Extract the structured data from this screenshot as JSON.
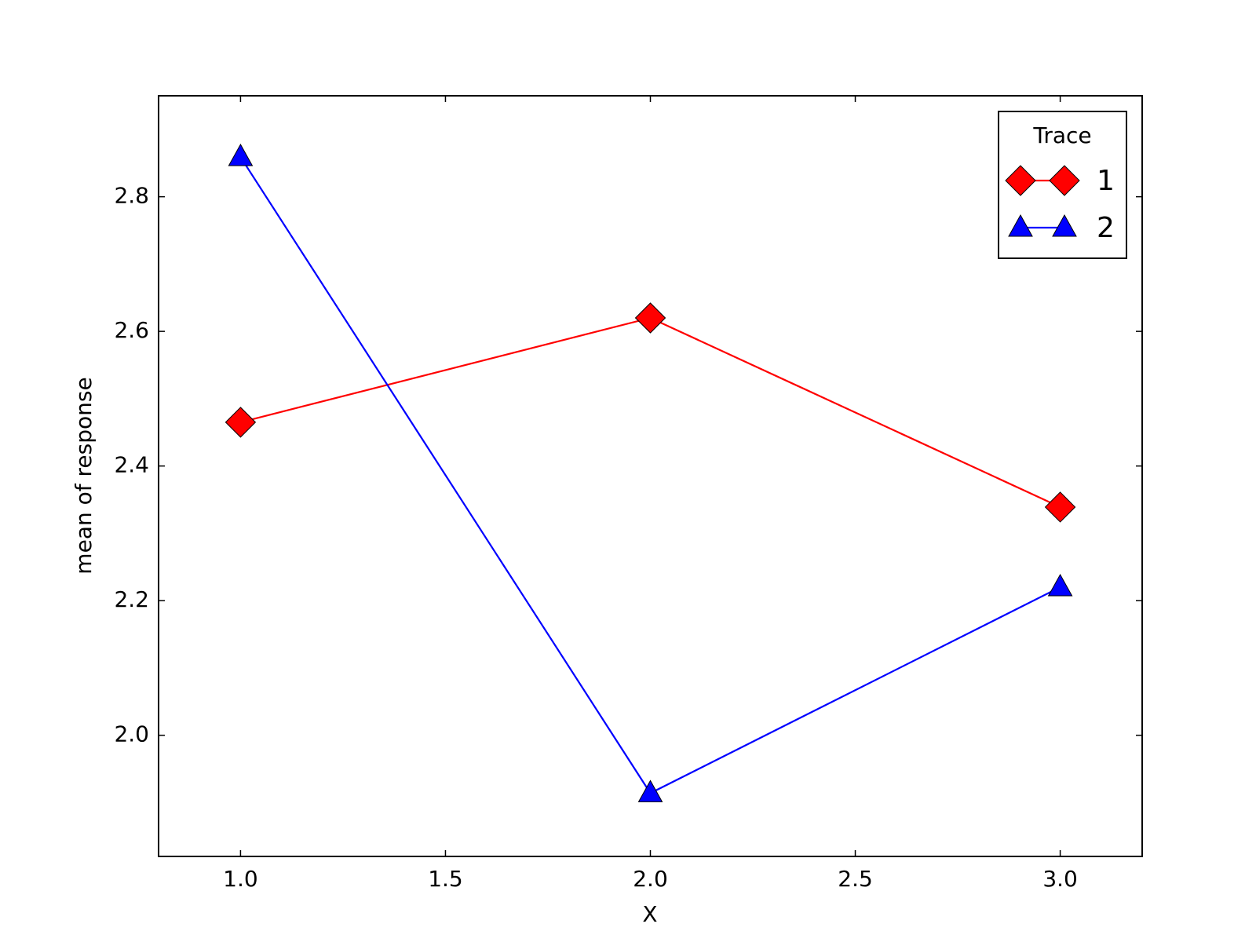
{
  "chart_data": {
    "type": "line",
    "x_label": "X",
    "y_label": "mean of response",
    "legend_title": "Trace",
    "legend_position": "upper right",
    "x": [
      1,
      2,
      3
    ],
    "series": [
      {
        "name": "1",
        "color": "#ff0000",
        "marker": "diamond",
        "values": [
          2.465,
          2.62,
          2.339
        ]
      },
      {
        "name": "2",
        "color": "#0000ff",
        "marker": "triangle",
        "values": [
          2.859,
          1.914,
          2.22
        ]
      }
    ],
    "xlim": [
      0.8,
      3.2
    ],
    "xticks": [
      {
        "value": 1,
        "label": "1.0"
      },
      {
        "value": 1.5,
        "label": "1.5"
      },
      {
        "value": 2,
        "label": "2.0"
      },
      {
        "value": 2.5,
        "label": "2.5"
      },
      {
        "value": 3,
        "label": "3.0"
      }
    ],
    "ylim": [
      1.82,
      2.95
    ],
    "yticks": [
      {
        "value": 2,
        "label": "2.0"
      },
      2.2,
      2.4,
      2.6,
      2.8
    ],
    "grid": false
  }
}
